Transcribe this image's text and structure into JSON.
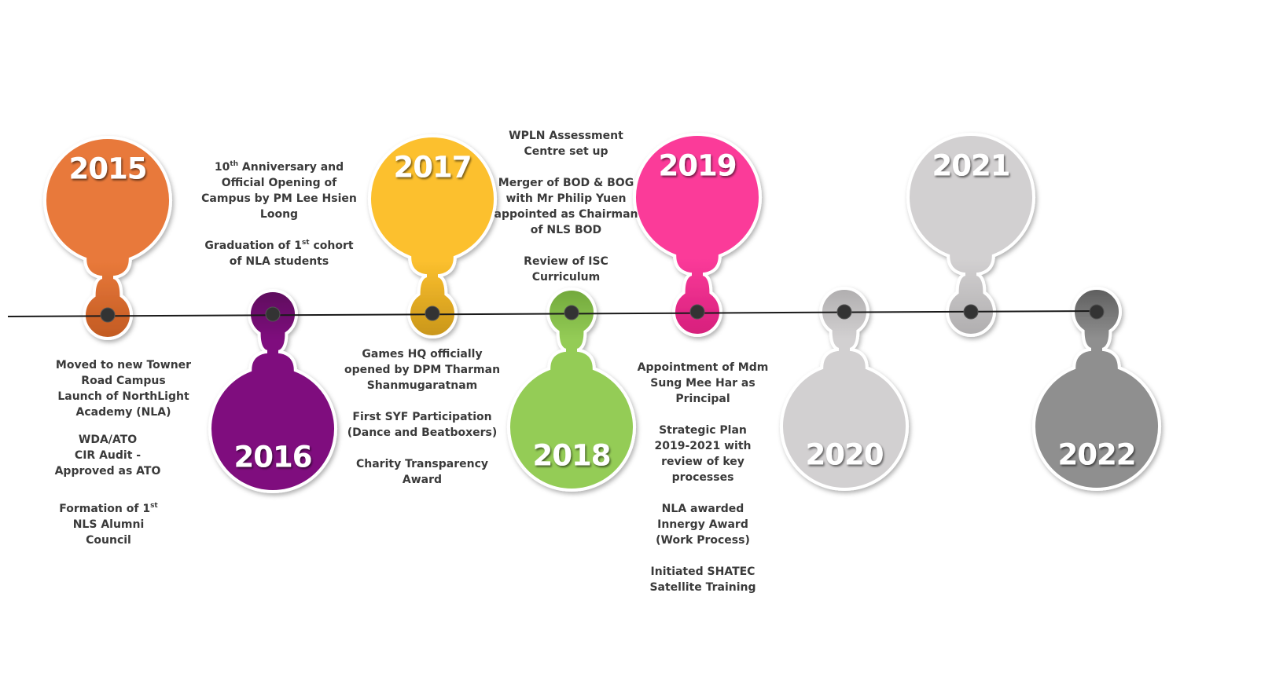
{
  "colors": {
    "line": "#1a1a1a",
    "dot": "#333333",
    "text": "#3a3a3a",
    "stroke": "#ffffff"
  },
  "milestones": [
    {
      "year": "2015",
      "color": "#e8793a",
      "edge": "#c25a22",
      "direction": "up"
    },
    {
      "year": "2016",
      "color": "#7f0f7e",
      "edge": "#5e0a5d",
      "direction": "down"
    },
    {
      "year": "2017",
      "color": "#fcc02e",
      "edge": "#c9961a",
      "direction": "up"
    },
    {
      "year": "2018",
      "color": "#94cc56",
      "edge": "#72a83c",
      "direction": "down"
    },
    {
      "year": "2019",
      "color": "#fb3a99",
      "edge": "#d61f7c",
      "direction": "up"
    },
    {
      "year": "2020",
      "color": "#d2d0d1",
      "edge": "#b0aeaf",
      "direction": "down"
    },
    {
      "year": "2021",
      "color": "#d2d0d1",
      "edge": "#b0aeaf",
      "direction": "up"
    },
    {
      "year": "2022",
      "color": "#8f8f8f",
      "edge": "#5e5e5e",
      "direction": "down"
    }
  ],
  "notes": {
    "n2015": {
      "p1": {
        "lines": [
          "Moved to new Towner",
          "Road Campus",
          "Launch of NorthLight",
          "Academy (NLA)"
        ]
      },
      "p2": {
        "lines": [
          "WDA/ATO",
          "CIR Audit -",
          "Approved as ATO"
        ]
      },
      "p3": {
        "l1a": "Formation of 1",
        "l1sup": "st",
        "l2": "NLS Alumni",
        "l3": "Council"
      }
    },
    "n2016": {
      "p1": {
        "l1a": "10",
        "l1sup": "th",
        "l1b": " Anniversary and",
        "l2": "Official Opening of",
        "l3": "Campus by PM Lee Hsien",
        "l4": "Loong"
      },
      "p2": {
        "l1a": "Graduation of 1",
        "l1sup": "st",
        "l1b": " cohort",
        "l2": "of NLA students"
      }
    },
    "n2017": {
      "p1": {
        "lines": [
          "Games HQ officially",
          "opened by DPM Tharman",
          "Shanmugaratnam"
        ]
      },
      "p2": {
        "lines": [
          "First SYF Participation",
          "(Dance and Beatboxers)"
        ]
      },
      "p3": {
        "lines": [
          "Charity Transparency",
          "Award"
        ]
      }
    },
    "n2018": {
      "p1": {
        "lines": [
          "WPLN Assessment",
          "Centre set up"
        ]
      },
      "p2": {
        "lines": [
          "Merger of BOD & BOG",
          "with Mr Philip Yuen",
          "appointed as Chairman",
          "of NLS BOD"
        ]
      },
      "p3": {
        "lines": [
          "Review of ISC",
          "Curriculum"
        ]
      }
    },
    "n2019": {
      "p1": {
        "lines": [
          "Appointment of Mdm",
          "Sung Mee Har as",
          "Principal"
        ]
      },
      "p2": {
        "lines": [
          "Strategic Plan",
          "2019-2021 with",
          "review of key",
          "processes"
        ]
      },
      "p3": {
        "lines": [
          "NLA awarded",
          "Innergy Award",
          "(Work Process)"
        ]
      },
      "p4": {
        "lines": [
          "Initiated SHATEC",
          "Satellite Training"
        ]
      }
    }
  }
}
